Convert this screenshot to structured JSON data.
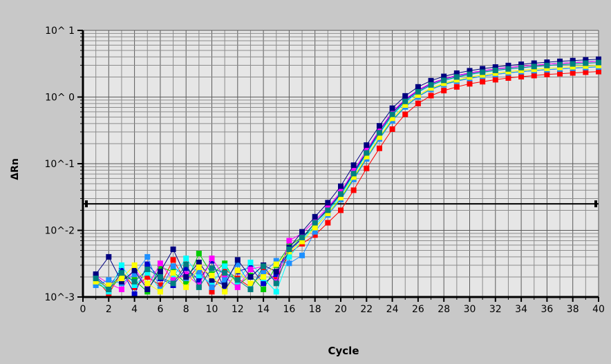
{
  "chart_data": {
    "type": "line",
    "title": "",
    "xlabel": "Cycle",
    "ylabel": "ΔRn",
    "x_scale": "linear",
    "y_scale": "log",
    "xlim": [
      0,
      40
    ],
    "ylim": [
      0.001,
      10
    ],
    "x_ticks": [
      "0",
      "2",
      "4",
      "6",
      "8",
      "10",
      "12",
      "14",
      "16",
      "18",
      "20",
      "22",
      "24",
      "26",
      "28",
      "30",
      "32",
      "34",
      "36",
      "38",
      "40"
    ],
    "y_tick_labels": [
      "10^ 1",
      "10^ 0",
      "10^-1",
      "10^-2",
      "10^-3"
    ],
    "y_tick_values": [
      10,
      1,
      0.1,
      0.01,
      0.001
    ],
    "grid": true,
    "threshold": 0.025,
    "x": [
      1,
      2,
      3,
      4,
      5,
      6,
      7,
      8,
      9,
      10,
      11,
      12,
      13,
      14,
      15,
      16,
      17,
      18,
      19,
      20,
      21,
      22,
      23,
      24,
      25,
      26,
      27,
      28,
      29,
      30,
      31,
      32,
      33,
      34,
      35,
      36,
      37,
      38,
      39,
      40
    ],
    "series": [
      {
        "color": "#ff0000",
        "values": [
          0.0019,
          0.0011,
          0.0024,
          0.0014,
          0.002,
          0.0015,
          0.0036,
          0.0017,
          0.003,
          0.0012,
          0.0026,
          0.0019,
          0.0014,
          0.0025,
          0.0018,
          0.0045,
          0.0063,
          0.0085,
          0.013,
          0.02,
          0.04,
          0.085,
          0.17,
          0.33,
          0.55,
          0.8,
          1.05,
          1.25,
          1.42,
          1.58,
          1.7,
          1.82,
          1.93,
          2.02,
          2.1,
          2.18,
          2.24,
          2.3,
          2.36,
          2.41
        ]
      },
      {
        "color": "#00cc00",
        "values": [
          0.0016,
          0.0013,
          0.002,
          0.0018,
          0.0012,
          0.0028,
          0.0024,
          0.0016,
          0.0045,
          0.0022,
          0.0032,
          0.0015,
          0.0021,
          0.0013,
          0.003,
          0.0058,
          0.008,
          0.011,
          0.018,
          0.03,
          0.06,
          0.12,
          0.24,
          0.45,
          0.72,
          1.02,
          1.32,
          1.55,
          1.75,
          1.92,
          2.06,
          2.19,
          2.31,
          2.41,
          2.5,
          2.58,
          2.65,
          2.72,
          2.79,
          2.85
        ]
      },
      {
        "color": "#0000cc",
        "values": [
          0.002,
          0.0014,
          0.0026,
          0.0011,
          0.0031,
          0.0019,
          0.0015,
          0.0027,
          0.0018,
          0.0035,
          0.0013,
          0.0024,
          0.0028,
          0.0016,
          0.0022,
          0.005,
          0.0075,
          0.013,
          0.021,
          0.036,
          0.075,
          0.15,
          0.31,
          0.58,
          0.9,
          1.25,
          1.58,
          1.85,
          2.08,
          2.28,
          2.46,
          2.62,
          2.76,
          2.89,
          3.0,
          3.11,
          3.2,
          3.29,
          3.37,
          3.45
        ]
      },
      {
        "color": "#00ffff",
        "values": [
          0.0018,
          0.0012,
          0.003,
          0.0015,
          0.0023,
          0.0013,
          0.002,
          0.0038,
          0.0021,
          0.0016,
          0.0029,
          0.0017,
          0.0033,
          0.0019,
          0.0012,
          0.004,
          0.007,
          0.012,
          0.019,
          0.033,
          0.068,
          0.14,
          0.28,
          0.53,
          0.84,
          1.18,
          1.5,
          1.76,
          1.98,
          2.17,
          2.34,
          2.49,
          2.63,
          2.75,
          2.86,
          2.96,
          3.05,
          3.13,
          3.21,
          3.28
        ]
      },
      {
        "color": "#ff00ff",
        "values": [
          0.0021,
          0.0016,
          0.0013,
          0.0027,
          0.0014,
          0.0032,
          0.0018,
          0.0022,
          0.0015,
          0.0038,
          0.002,
          0.0014,
          0.0026,
          0.0029,
          0.0017,
          0.007,
          0.009,
          0.014,
          0.022,
          0.038,
          0.078,
          0.16,
          0.32,
          0.6,
          0.93,
          1.28,
          1.61,
          1.88,
          2.11,
          2.31,
          2.48,
          2.64,
          2.78,
          2.9,
          3.01,
          3.11,
          3.2,
          3.28,
          3.36,
          3.43
        ]
      },
      {
        "color": "#1e90ff",
        "values": [
          0.0015,
          0.0018,
          0.0016,
          0.0022,
          0.004,
          0.0013,
          0.0029,
          0.0019,
          0.0024,
          0.0014,
          0.0018,
          0.0031,
          0.0015,
          0.0023,
          0.0035,
          0.0032,
          0.0042,
          0.0095,
          0.017,
          0.029,
          0.058,
          0.118,
          0.235,
          0.44,
          0.71,
          1.01,
          1.3,
          1.53,
          1.73,
          1.9,
          2.05,
          2.18,
          2.3,
          2.4,
          2.49,
          2.57,
          2.64,
          2.71,
          2.77,
          2.83
        ]
      },
      {
        "color": "#000080",
        "values": [
          0.0022,
          0.004,
          0.0017,
          0.0025,
          0.0013,
          0.0024,
          0.0052,
          0.002,
          0.0033,
          0.0018,
          0.0015,
          0.0036,
          0.002,
          0.003,
          0.0024,
          0.0055,
          0.0095,
          0.016,
          0.026,
          0.046,
          0.095,
          0.19,
          0.37,
          0.68,
          1.04,
          1.42,
          1.76,
          2.04,
          2.28,
          2.48,
          2.66,
          2.82,
          2.97,
          3.1,
          3.22,
          3.33,
          3.43,
          3.52,
          3.61,
          3.69
        ]
      },
      {
        "color": "#ffff00",
        "values": [
          0.0017,
          0.0015,
          0.0019,
          0.003,
          0.0016,
          0.0012,
          0.0023,
          0.0014,
          0.0028,
          0.0021,
          0.0012,
          0.0025,
          0.0016,
          0.002,
          0.0031,
          0.0048,
          0.0068,
          0.011,
          0.018,
          0.031,
          0.063,
          0.128,
          0.25,
          0.48,
          0.76,
          1.07,
          1.37,
          1.61,
          1.82,
          2.0,
          2.15,
          2.29,
          2.41,
          2.52,
          2.61,
          2.7,
          2.78,
          2.85,
          2.92,
          2.98
        ]
      },
      {
        "color": "#008080",
        "values": [
          0.0019,
          0.0013,
          0.0023,
          0.0017,
          0.0026,
          0.002,
          0.0016,
          0.0031,
          0.0014,
          0.0027,
          0.0023,
          0.0018,
          0.0013,
          0.0029,
          0.0016,
          0.0052,
          0.0078,
          0.013,
          0.02,
          0.035,
          0.071,
          0.145,
          0.29,
          0.55,
          0.86,
          1.2,
          1.52,
          1.78,
          2.0,
          2.19,
          2.36,
          2.51,
          2.64,
          2.76,
          2.87,
          2.97,
          3.06,
          3.14,
          3.22,
          3.29
        ]
      }
    ]
  }
}
